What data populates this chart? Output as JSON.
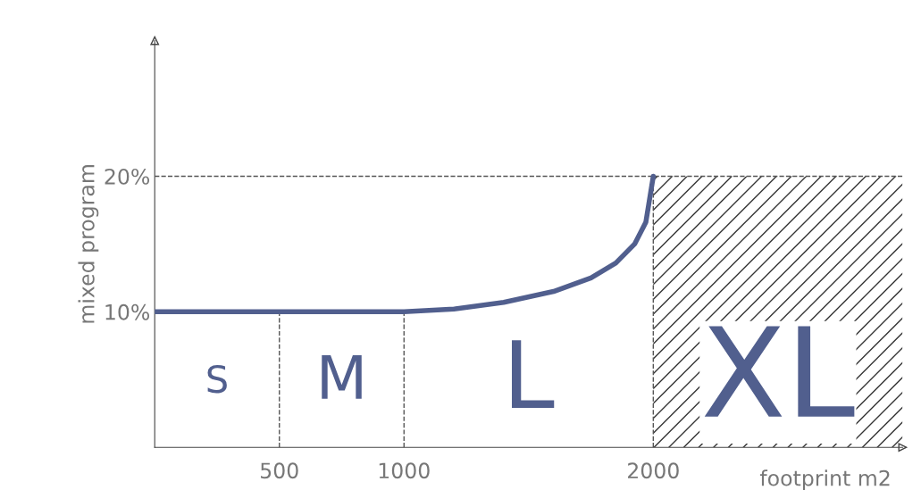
{
  "chart_data": {
    "type": "line",
    "xlabel": "footprint m2",
    "ylabel": "mixed program",
    "x": [
      0,
      500,
      1000,
      1200,
      1400,
      1600,
      1750,
      1850,
      1925,
      1970,
      2000
    ],
    "series": [
      {
        "color": "#515f8e",
        "values": [
          10,
          10,
          10,
          10.2,
          10.7,
          11.5,
          12.5,
          13.6,
          15,
          16.6,
          20
        ]
      }
    ],
    "xlim": [
      0,
      3000
    ],
    "ylim": [
      0,
      30
    ],
    "xticks": [
      500,
      1000,
      2000
    ],
    "yticks": [
      {
        "value": 10,
        "label": "10%"
      },
      {
        "value": 20,
        "label": "20%"
      }
    ],
    "ref_lines": [
      {
        "axis": "x",
        "value": 500,
        "line_style": "dashed",
        "color": "#555555"
      },
      {
        "axis": "x",
        "value": 1000,
        "line_style": "dashed",
        "color": "#555555"
      },
      {
        "axis": "x",
        "value": 2000,
        "line_style": "dashed",
        "color": "#555555"
      },
      {
        "axis": "y",
        "value": 20,
        "line_style": "dashed",
        "color": "#555555"
      }
    ],
    "bands": [
      {
        "axis": "x",
        "from": 2000,
        "to": 3000,
        "color": "#333333"
      }
    ],
    "annotations": [
      "S",
      "M",
      "L",
      "XL"
    ],
    "grid": false,
    "legend": false,
    "marker": "none",
    "line_style": "solid"
  }
}
